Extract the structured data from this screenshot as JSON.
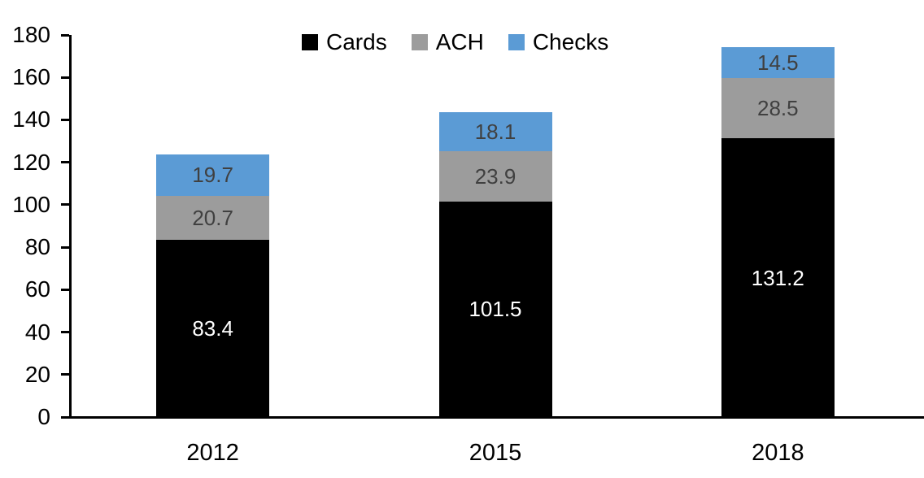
{
  "chart_data": {
    "type": "bar",
    "stacked": true,
    "title": "",
    "xlabel": "",
    "ylabel": "",
    "categories": [
      "2012",
      "2015",
      "2018"
    ],
    "series": [
      {
        "name": "Cards",
        "color": "#000000",
        "label_color": "#ffffff",
        "values": [
          83.4,
          101.5,
          131.2
        ]
      },
      {
        "name": "ACH",
        "color": "#9c9c9c",
        "label_color": "#404040",
        "values": [
          20.7,
          23.9,
          28.5
        ]
      },
      {
        "name": "Checks",
        "color": "#5b9bd5",
        "label_color": "#404040",
        "values": [
          19.7,
          18.1,
          14.5
        ]
      }
    ],
    "totals": [
      123.8,
      143.5,
      174.2
    ],
    "ylim": [
      0,
      180
    ],
    "yticks": [
      0,
      20,
      40,
      60,
      80,
      100,
      120,
      140,
      160,
      180
    ],
    "grid": false,
    "legend_position": "top",
    "legend_order": [
      "Cards",
      "ACH",
      "Checks"
    ],
    "axis_color": "#000000",
    "tick_label_color": "#000000"
  }
}
